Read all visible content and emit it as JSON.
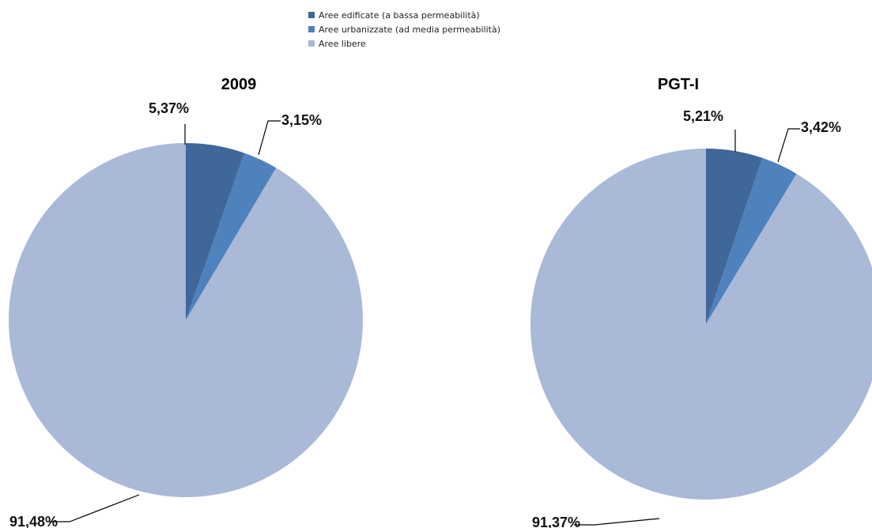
{
  "legend": {
    "items": [
      {
        "label": "Aree edificate (a bassa permeabilità)",
        "color": "#3F6799"
      },
      {
        "label": "Aree urbanizzate (ad media permeabilità)",
        "color": "#4F81BD"
      },
      {
        "label": "Aree libere",
        "color": "#AAB9D7"
      }
    ]
  },
  "chart_data": [
    {
      "type": "pie",
      "title": "2009",
      "categories": [
        "Aree edificate (a bassa permeabilità)",
        "Aree urbanizzate (ad media permeabilità)",
        "Aree libere"
      ],
      "values": [
        5.37,
        3.15,
        91.48
      ],
      "labels": [
        "5,37%",
        "3,15%",
        "91,48%"
      ],
      "colors": [
        "#3F6799",
        "#4F81BD",
        "#AAB9D7"
      ],
      "legend": "top-center"
    },
    {
      "type": "pie",
      "title": "PGT-I",
      "categories": [
        "Aree edificate (a bassa permeabilità)",
        "Aree urbanizzate (ad media permeabilità)",
        "Aree libere"
      ],
      "values": [
        5.21,
        3.42,
        91.37
      ],
      "labels": [
        "5,21%",
        "3,42%",
        "91,37%"
      ],
      "colors": [
        "#3F6799",
        "#4F81BD",
        "#AAB9D7"
      ],
      "legend": "top-center"
    }
  ]
}
